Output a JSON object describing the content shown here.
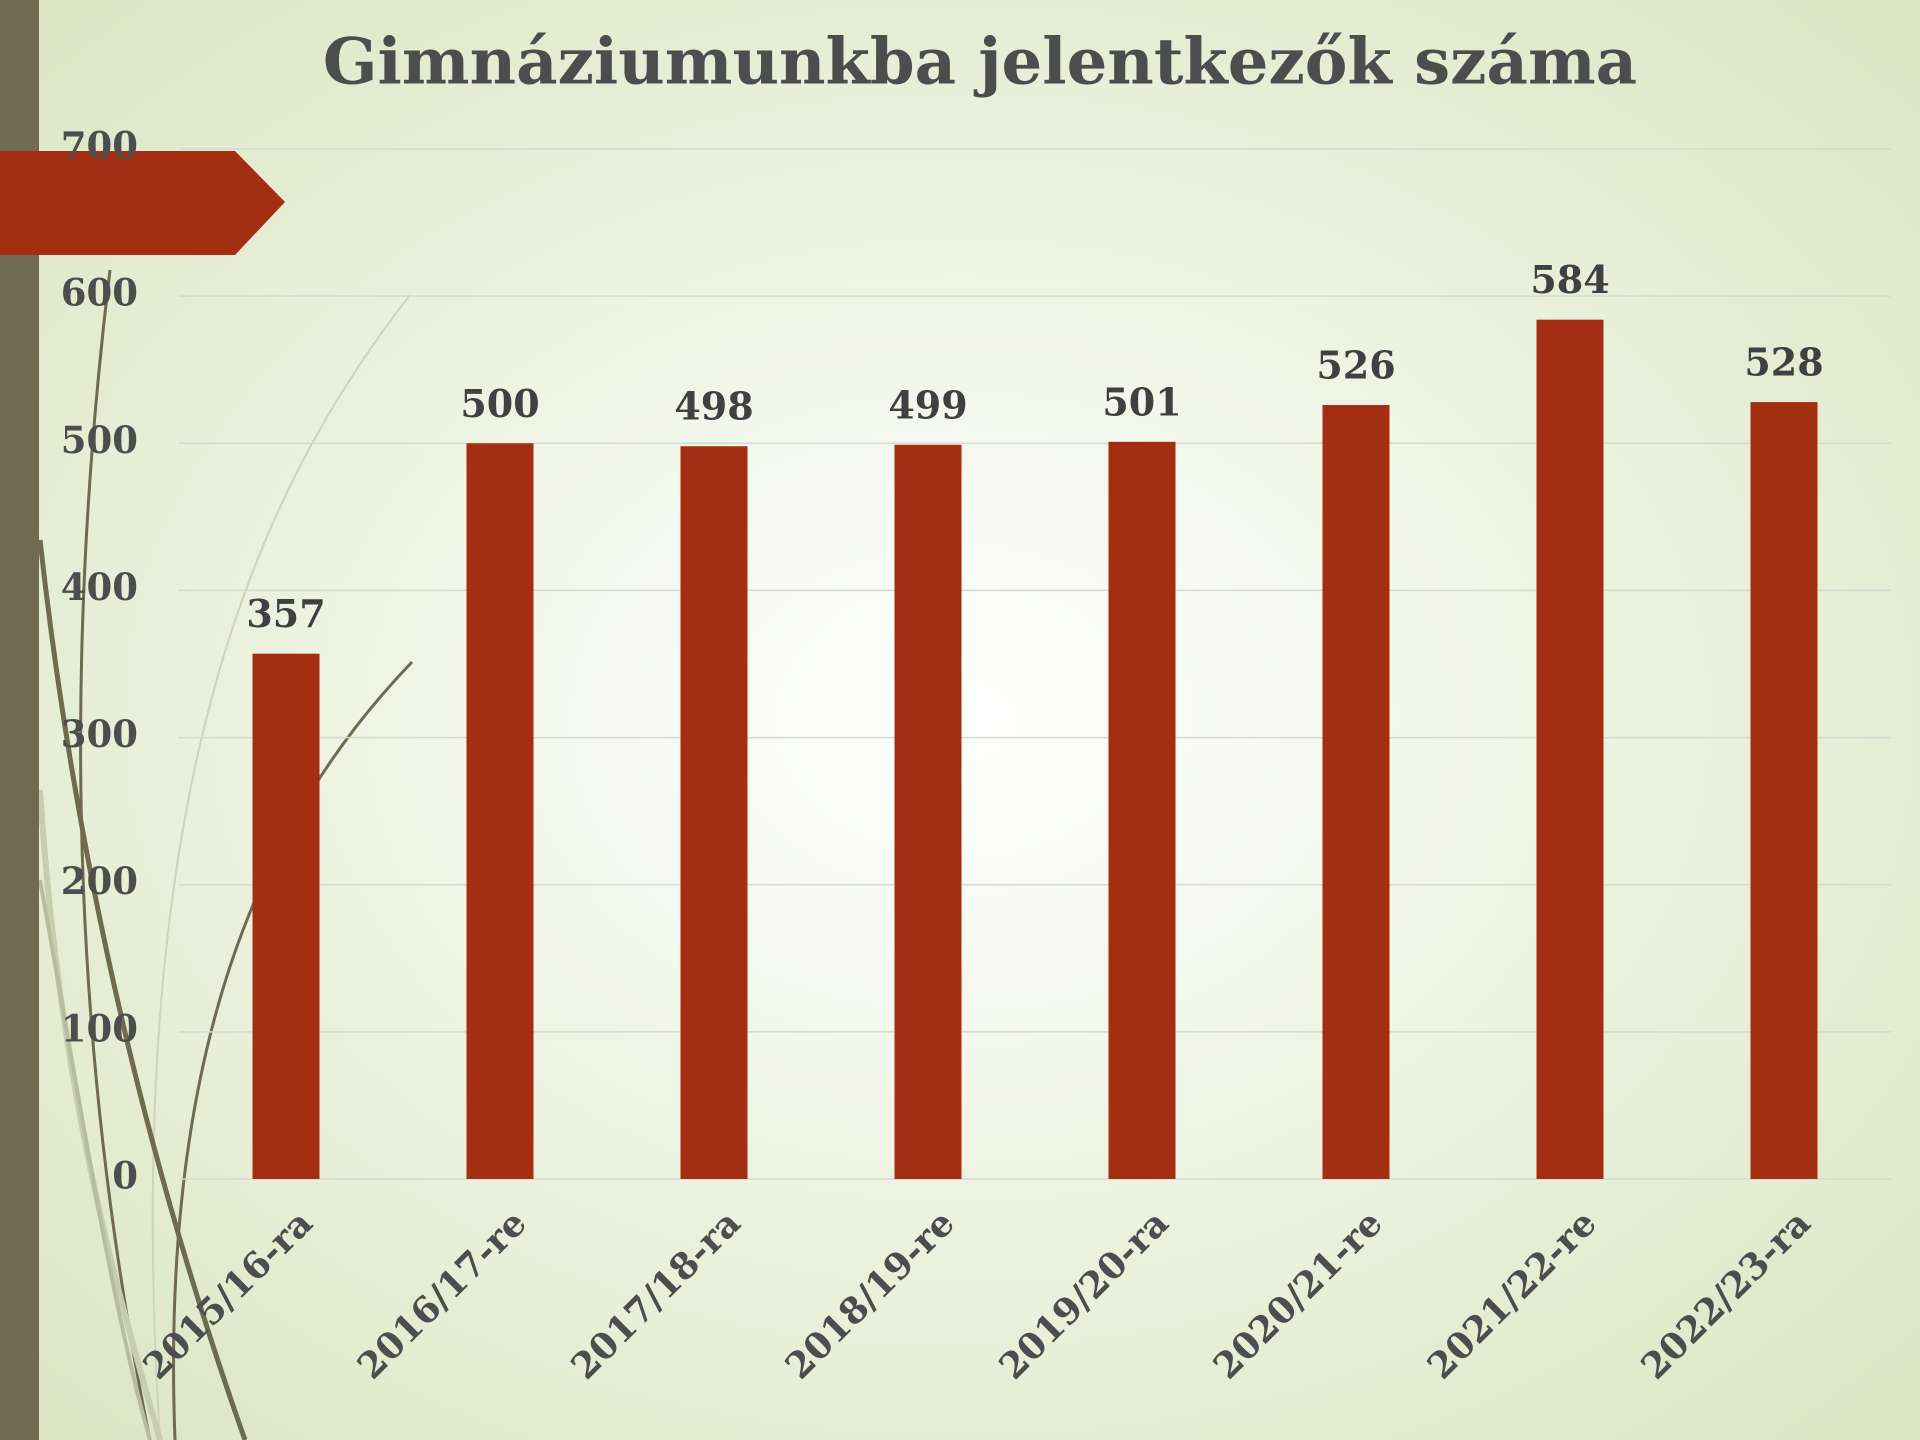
{
  "chart_data": {
    "type": "bar",
    "title": "Gimnáziumunkba jelentkezők száma",
    "categories": [
      "2015/16-ra",
      "2016/17-re",
      "2017/18-ra",
      "2018/19-re",
      "2019/20-ra",
      "2020/21-re",
      "2021/22-re",
      "2022/23-ra"
    ],
    "values": [
      357,
      500,
      498,
      499,
      501,
      526,
      584,
      528
    ],
    "color": "#a32e12",
    "ylim": [
      0,
      700
    ],
    "yticks": [
      0,
      100,
      200,
      300,
      400,
      500,
      600,
      700
    ],
    "grid": true
  }
}
